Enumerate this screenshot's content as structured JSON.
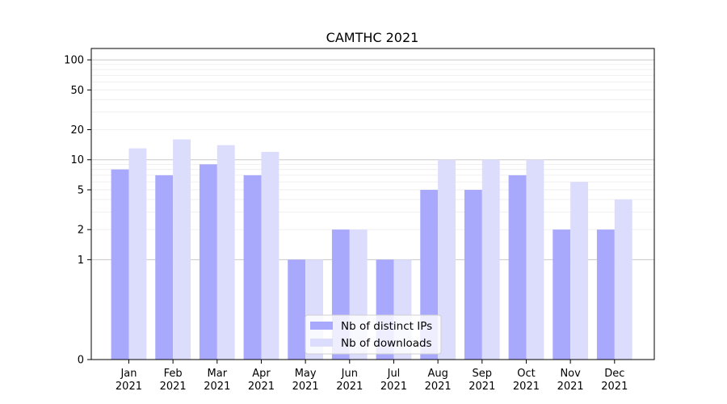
{
  "chart_data": {
    "type": "bar",
    "title": "CAMTHC 2021",
    "xlabel": "",
    "ylabel": "",
    "y_scale": "symlog",
    "ylim": [
      0,
      130
    ],
    "y_ticks": [
      0,
      1,
      2,
      5,
      10,
      20,
      50,
      100
    ],
    "y_tick_labels": [
      "0",
      "1",
      "2",
      "5",
      "10",
      "20",
      "50",
      "100"
    ],
    "grid": true,
    "legend_position": "bottom-center",
    "categories": [
      {
        "month": "Jan",
        "year": "2021"
      },
      {
        "month": "Feb",
        "year": "2021"
      },
      {
        "month": "Mar",
        "year": "2021"
      },
      {
        "month": "Apr",
        "year": "2021"
      },
      {
        "month": "May",
        "year": "2021"
      },
      {
        "month": "Jun",
        "year": "2021"
      },
      {
        "month": "Jul",
        "year": "2021"
      },
      {
        "month": "Aug",
        "year": "2021"
      },
      {
        "month": "Sep",
        "year": "2021"
      },
      {
        "month": "Oct",
        "year": "2021"
      },
      {
        "month": "Nov",
        "year": "2021"
      },
      {
        "month": "Dec",
        "year": "2021"
      }
    ],
    "series": [
      {
        "name": "Nb of distinct IPs",
        "color": "#a8a8fc",
        "values": [
          8,
          7,
          9,
          7,
          1,
          2,
          1,
          5,
          5,
          7,
          2,
          2
        ]
      },
      {
        "name": "Nb of downloads",
        "color": "#dcdcfd",
        "values": [
          13,
          16,
          14,
          12,
          1,
          2,
          1,
          10,
          10,
          10,
          6,
          4
        ]
      }
    ]
  }
}
